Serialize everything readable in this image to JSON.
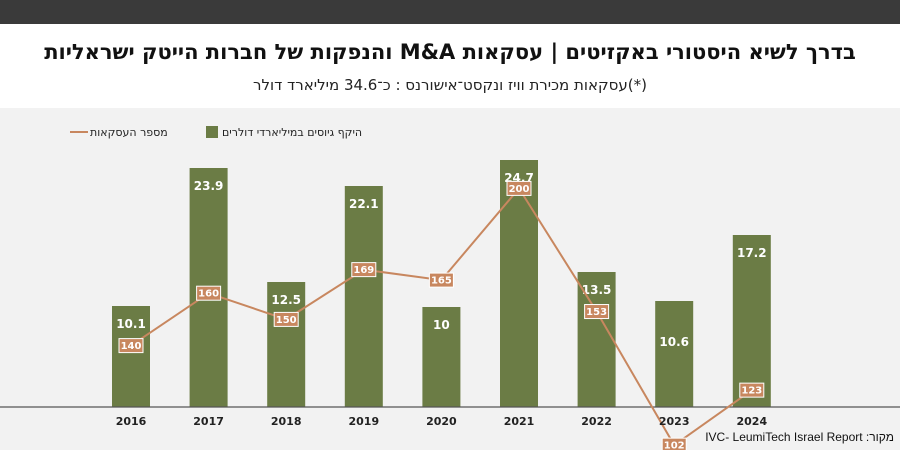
{
  "header": {
    "title": "בדרך לשיא היסטורי באקזיטים | עסקאות M&A והנפקות של חברות הייטק ישראליות",
    "subtitle": "(*)עסקאות מכירת וויז ונקסט־אישורנס : כ־34.6 מיליארד דולר"
  },
  "legend": {
    "bars_label": "היקף גיוסים במיליארדי דולרים",
    "line_label": "מספר העסקאות"
  },
  "source": "מקור: IVC- LeumiTech Israel Report",
  "colors": {
    "bar": "#6b7c45",
    "line": "#c8875f",
    "background": "#f2f2f2"
  },
  "chart_data": {
    "type": "bar",
    "categories": [
      "2016",
      "2017",
      "2018",
      "2019",
      "2020",
      "2021",
      "2022",
      "2023",
      "2024"
    ],
    "series": [
      {
        "name": "היקף גיוסים במיליארדי דולרים",
        "type": "bar",
        "values": [
          10.1,
          23.9,
          12.5,
          22.1,
          10,
          24.7,
          13.5,
          10.6,
          17.2
        ]
      },
      {
        "name": "מספר העסקאות",
        "type": "line",
        "values": [
          140,
          160,
          150,
          169,
          165,
          200,
          153,
          102,
          123
        ]
      }
    ],
    "bar_labels": [
      "10.1",
      "23.9",
      "12.5",
      "22.1",
      "10",
      "24.7",
      "13.5",
      "10.6",
      "17.2"
    ],
    "line_labels": [
      "140",
      "160",
      "150",
      "169",
      "165",
      "200",
      "153",
      "102",
      "123"
    ],
    "legend_position": "top-left",
    "grid": false
  }
}
